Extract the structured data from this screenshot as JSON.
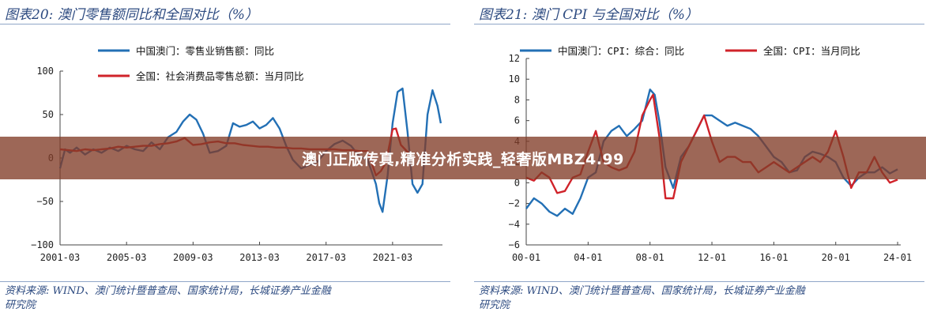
{
  "colors": {
    "blue": "#2370b5",
    "red": "#d0232a",
    "title": "#2c4a80",
    "banner": "#823c28"
  },
  "banner": {
    "text": "澳门正版传真,精准分析实践_轻奢版MBZ4.99"
  },
  "chart_data": [
    {
      "type": "line",
      "title": "图表20:  澳门零售额同比和全国对比（%）",
      "source_line1": "资料来源:  WIND、澳门统计暨普查局、国家统计局，长城证券产业金融",
      "source_line2": "研究院",
      "xlim": [
        2001.0,
        2024.0
      ],
      "ylim": [
        -100,
        100
      ],
      "yticks": [
        100,
        50,
        0,
        -50,
        -100
      ],
      "ytick_labels": [
        "100",
        "50",
        "0",
        "−50",
        "−100"
      ],
      "xticks": [
        2001.0,
        2005.0,
        2009.0,
        2013.0,
        2017.0,
        2021.0
      ],
      "xtick_labels": [
        "2001-03",
        "2005-03",
        "2009-03",
        "2013-03",
        "2017-03",
        "2021-03"
      ],
      "legend": "top-left",
      "series": [
        {
          "name": "中国澳门：零售业销售额：同比",
          "color": "blue",
          "x": [
            2001.0,
            2001.3,
            2001.6,
            2002.0,
            2002.5,
            2003.0,
            2003.5,
            2004.0,
            2004.5,
            2005.0,
            2005.5,
            2006.0,
            2006.5,
            2007.0,
            2007.5,
            2008.0,
            2008.4,
            2008.8,
            2009.2,
            2009.6,
            2010.0,
            2010.5,
            2011.0,
            2011.4,
            2011.8,
            2012.2,
            2012.6,
            2013.0,
            2013.4,
            2013.8,
            2014.2,
            2014.6,
            2015.0,
            2015.5,
            2016.0,
            2016.5,
            2017.0,
            2017.5,
            2018.0,
            2018.5,
            2019.0,
            2019.5,
            2020.0,
            2020.2,
            2020.4,
            2020.7,
            2021.0,
            2021.3,
            2021.6,
            2021.9,
            2022.2,
            2022.5,
            2022.8,
            2023.1,
            2023.4,
            2023.7,
            2023.9
          ],
          "y": [
            -12,
            10,
            6,
            12,
            4,
            10,
            6,
            12,
            8,
            14,
            10,
            8,
            18,
            10,
            24,
            30,
            42,
            50,
            44,
            28,
            6,
            8,
            14,
            40,
            36,
            38,
            42,
            34,
            38,
            46,
            34,
            14,
            -2,
            -12,
            -8,
            -4,
            8,
            16,
            20,
            14,
            2,
            -2,
            -30,
            -52,
            -62,
            -20,
            40,
            76,
            80,
            30,
            -30,
            -40,
            -30,
            50,
            78,
            60,
            40
          ]
        },
        {
          "name": "全国：社会消费品零售总额：当月同比",
          "color": "red",
          "x": [
            2001.0,
            2001.5,
            2002.0,
            2002.5,
            2003.0,
            2003.5,
            2004.0,
            2004.5,
            2005.0,
            2005.5,
            2006.0,
            2006.5,
            2007.0,
            2007.5,
            2008.0,
            2008.5,
            2009.0,
            2009.5,
            2010.0,
            2010.5,
            2011.0,
            2011.5,
            2012.0,
            2012.5,
            2013.0,
            2013.5,
            2014.0,
            2014.5,
            2015.0,
            2015.5,
            2016.0,
            2016.5,
            2017.0,
            2017.5,
            2018.0,
            2018.5,
            2019.0,
            2019.5,
            2020.0,
            2020.3,
            2020.6,
            2021.0,
            2021.2,
            2021.5,
            2022.0
          ],
          "y": [
            10,
            9,
            8,
            10,
            9,
            10,
            11,
            13,
            12,
            13,
            14,
            14,
            16,
            17,
            19,
            23,
            15,
            16,
            18,
            19,
            17,
            17,
            15,
            14,
            13,
            13,
            12,
            12,
            11,
            11,
            10,
            10,
            10,
            10,
            9,
            9,
            8,
            8,
            -20,
            -15,
            -5,
            33,
            34,
            15,
            5
          ]
        }
      ]
    },
    {
      "type": "line",
      "title": "图表21:  澳门 CPI 与全国对比（%）",
      "source_line1": "资料来源:  WIND、澳门统计暨普查局、国家统计局，长城证券产业金融",
      "source_line2": "研究院",
      "xlim": [
        2000.0,
        2024.2
      ],
      "ylim": [
        -6,
        12
      ],
      "yticks": [
        12,
        10,
        8,
        6,
        4,
        2,
        0,
        -2,
        -4,
        -6
      ],
      "ytick_labels": [
        "12",
        "10",
        "8",
        "6",
        "4",
        "2",
        "0",
        "−2",
        "−4",
        "−6"
      ],
      "xticks": [
        2000.0,
        2004.0,
        2008.0,
        2012.0,
        2016.0,
        2020.0,
        2024.0
      ],
      "xtick_labels": [
        "00-01",
        "04-01",
        "08-01",
        "12-01",
        "16-01",
        "20-01",
        "24-01"
      ],
      "legend": "top",
      "series": [
        {
          "name": "中国澳门：CPI：综合：同比",
          "color": "blue",
          "x": [
            2000.0,
            2000.5,
            2001.0,
            2001.5,
            2002.0,
            2002.5,
            2003.0,
            2003.5,
            2004.0,
            2004.5,
            2005.0,
            2005.5,
            2006.0,
            2006.5,
            2007.0,
            2007.5,
            2008.0,
            2008.3,
            2008.6,
            2009.0,
            2009.5,
            2010.0,
            2010.5,
            2011.0,
            2011.5,
            2012.0,
            2012.5,
            2013.0,
            2013.5,
            2014.0,
            2014.5,
            2015.0,
            2015.5,
            2016.0,
            2016.5,
            2017.0,
            2017.5,
            2018.0,
            2018.5,
            2019.0,
            2019.5,
            2020.0,
            2020.5,
            2021.0,
            2021.5,
            2022.0,
            2022.5,
            2023.0,
            2023.5,
            2024.0
          ],
          "y": [
            -2.5,
            -1.5,
            -2,
            -2.8,
            -3.2,
            -2.5,
            -3.0,
            -1.5,
            0.5,
            1.0,
            4.0,
            5.0,
            5.5,
            4.5,
            5.2,
            6.0,
            9.0,
            8.5,
            6.0,
            1.5,
            -0.5,
            2.5,
            3.5,
            5.0,
            6.5,
            6.5,
            6.0,
            5.5,
            5.8,
            5.5,
            5.2,
            4.5,
            3.5,
            2.5,
            2.0,
            1.0,
            1.2,
            2.5,
            3.0,
            2.8,
            2.5,
            2.0,
            0.5,
            -0.3,
            0.5,
            1.0,
            1.0,
            1.5,
            0.9,
            1.3
          ]
        },
        {
          "name": "全国：CPI：当月同比",
          "color": "red",
          "x": [
            2000.0,
            2000.5,
            2001.0,
            2001.5,
            2002.0,
            2002.5,
            2003.0,
            2003.5,
            2004.0,
            2004.5,
            2005.0,
            2005.5,
            2006.0,
            2006.5,
            2007.0,
            2007.5,
            2008.0,
            2008.2,
            2008.6,
            2009.0,
            2009.5,
            2010.0,
            2010.5,
            2011.0,
            2011.5,
            2012.0,
            2012.5,
            2013.0,
            2013.5,
            2014.0,
            2014.5,
            2015.0,
            2015.5,
            2016.0,
            2016.5,
            2017.0,
            2017.5,
            2018.0,
            2018.5,
            2019.0,
            2019.5,
            2020.0,
            2020.5,
            2021.0,
            2021.5,
            2022.0,
            2022.5,
            2023.0,
            2023.5,
            2024.0
          ],
          "y": [
            0.5,
            0.2,
            1.0,
            0.5,
            -1.0,
            -0.8,
            0.5,
            0.8,
            3.0,
            5.0,
            2.0,
            1.5,
            1.2,
            1.5,
            3.0,
            6.5,
            8.0,
            8.5,
            4.5,
            -1.5,
            -1.5,
            2.0,
            3.5,
            5.0,
            6.5,
            4.0,
            2.0,
            2.5,
            2.5,
            2.0,
            2.0,
            1.0,
            1.5,
            2.0,
            1.5,
            1.0,
            1.5,
            2.0,
            2.5,
            2.0,
            3.0,
            5.0,
            2.5,
            -0.5,
            1.0,
            1.0,
            2.5,
            1.0,
            0.0,
            0.3
          ]
        }
      ]
    }
  ]
}
